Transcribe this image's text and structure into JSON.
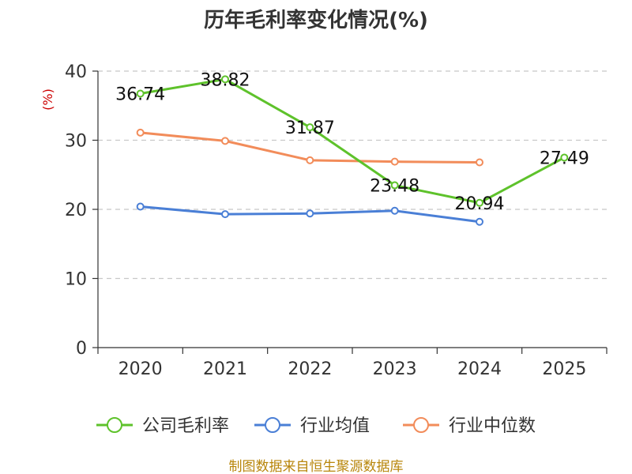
{
  "chart_data": {
    "type": "line",
    "title": "历年毛利率变化情况(%)",
    "ylabel": "(%)",
    "xlabel": "",
    "categories": [
      "2020",
      "2021",
      "2022",
      "2023",
      "2024",
      "2025"
    ],
    "ylim": [
      0,
      40
    ],
    "yticks": [
      0,
      10,
      20,
      30,
      40
    ],
    "grid": true,
    "legend_position": "bottom",
    "series": [
      {
        "name": "公司毛利率",
        "color": "#5ec22b",
        "values": [
          36.74,
          38.82,
          31.87,
          23.48,
          20.94,
          27.49
        ],
        "labels": [
          "36.74",
          "38.82",
          "31.87",
          "23.48",
          "20.94",
          "27.49"
        ]
      },
      {
        "name": "行业均值",
        "color": "#4a7fd6",
        "values": [
          20.4,
          19.3,
          19.4,
          19.8,
          18.2,
          null
        ]
      },
      {
        "name": "行业中位数",
        "color": "#f28c5a",
        "values": [
          31.1,
          29.9,
          27.1,
          26.9,
          26.8,
          null
        ]
      }
    ]
  },
  "footer": {
    "source": "制图数据来自恒生聚源数据库"
  }
}
